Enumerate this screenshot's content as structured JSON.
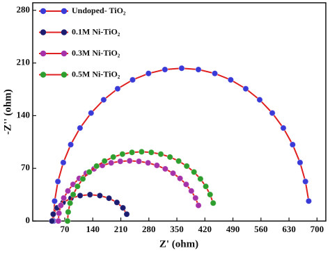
{
  "chart_data": {
    "type": "scatter-line",
    "x_label": "Z' (ohm)",
    "y_label": "-Z'' (ohm)",
    "xlim": [
      -10,
      722
    ],
    "ylim": [
      0,
      290
    ],
    "xticks": [
      70,
      140,
      210,
      280,
      350,
      420,
      490,
      560,
      630,
      700
    ],
    "yticks": [
      0,
      70,
      140,
      210,
      280
    ],
    "line_color": "#e02020",
    "legend": "upper left",
    "series": [
      {
        "name": "Undoped- TiO₂",
        "color": "#3a3ad8",
        "x": [
          42,
          44.7,
          52.9,
          66.4,
          84.9,
          108.1,
          135.7,
          167.2,
          202,
          239.5,
          279.2,
          320.2,
          362,
          403.8,
          444.8,
          484.5,
          522,
          556.8,
          588.3,
          615.9,
          639.1,
          657.6,
          671.1,
          679.3
        ],
        "values": [
          0,
          26.5,
          52.5,
          77.7,
          101.5,
          123.6,
          143.5,
          161.1,
          175.8,
          187.6,
          196.1,
          201.3,
          203,
          201.3,
          196.1,
          187.6,
          175.8,
          161.1,
          143.5,
          123.6,
          101.5,
          77.7,
          52.5,
          26.5
        ]
      },
      {
        "name": "0.1M Ni-TiO₂",
        "color": "#1c1c70",
        "x": [
          38,
          41.2,
          50.7,
          65.8,
          85.5,
          108.4,
          133,
          157.6,
          180.5,
          200.2,
          215.3,
          224.8
        ],
        "values": [
          0,
          9.1,
          17.5,
          24.7,
          30.3,
          33.8,
          35,
          33.8,
          30.3,
          24.7,
          17.5,
          9.1
        ]
      },
      {
        "name": "0.3M Ni-TiO₂",
        "color": "#a532a8",
        "x": [
          54,
          55.5,
          60.1,
          67.5,
          77.9,
          90.8,
          106.1,
          123.6,
          143,
          163.9,
          185.9,
          208.8,
          232,
          255.2,
          278.1,
          300.1,
          321,
          340.4,
          357.9,
          373.2,
          386.1,
          396.5,
          403.9
        ],
        "values": [
          0,
          10.4,
          20.7,
          30.6,
          40,
          48.7,
          56.6,
          63.5,
          69.3,
          73.9,
          77.3,
          79.3,
          80,
          79.3,
          77.3,
          73.9,
          69.3,
          63.5,
          56.6,
          48.7,
          40,
          30.6,
          20.7
        ]
      },
      {
        "name": "0.5M Ni-TiO₂",
        "color": "#2e9e2e",
        "x": [
          77,
          78.6,
          83.3,
          91.1,
          101.8,
          115.2,
          131.2,
          149.4,
          169.5,
          191.2,
          214.1,
          237.9,
          262,
          286.1,
          309.9,
          332.8,
          354.5,
          374.6,
          392.8,
          408.8,
          422.2,
          432.9,
          440.7
        ],
        "values": [
          0,
          12,
          23.8,
          35.2,
          46,
          56,
          65.1,
          73,
          79.7,
          85,
          88.9,
          91.2,
          92,
          91.2,
          88.9,
          85,
          79.7,
          73,
          65.1,
          56,
          46,
          35.2,
          23.8
        ]
      }
    ]
  }
}
